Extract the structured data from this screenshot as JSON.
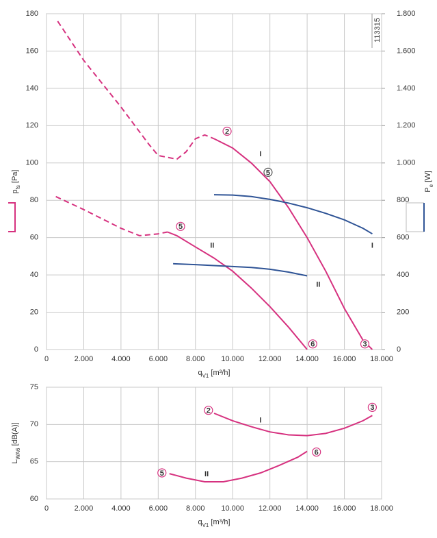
{
  "chart_data": [
    {
      "type": "line",
      "xlabel": {
        "main": "q",
        "sub": "V1",
        "unit": "[m³/h]"
      },
      "ylabel": {
        "main": "p",
        "sub": "fs",
        "unit": "[Pa]"
      },
      "y2label": {
        "main": "P",
        "sub": "e",
        "unit": "[W]"
      },
      "annotation": "113315",
      "xlim": [
        0,
        18000
      ],
      "xticks": [
        0,
        {
          "value": 2000,
          "label": "2.000"
        },
        {
          "value": 4000,
          "label": "4.000"
        },
        {
          "value": 6000,
          "label": "6.000"
        },
        {
          "value": 8000,
          "label": "8.000"
        },
        {
          "value": 10000,
          "label": "10.000"
        },
        {
          "value": 12000,
          "label": "12.000"
        },
        {
          "value": 14000,
          "label": "14.000"
        },
        {
          "value": 16000,
          "label": "16.000"
        },
        {
          "value": 18000,
          "label": "18.000"
        }
      ],
      "ylim": [
        0,
        180
      ],
      "yticks": [
        0,
        20,
        40,
        60,
        80,
        100,
        120,
        140,
        160,
        180
      ],
      "y2lim": [
        0,
        1800
      ],
      "y2ticks": [
        0,
        200,
        400,
        600,
        800,
        {
          "value": 1000,
          "label": "1.000"
        },
        {
          "value": 1200,
          "label": "1.200"
        },
        {
          "value": 1400,
          "label": "1.400"
        },
        {
          "value": 1600,
          "label": "1.600"
        },
        {
          "value": 1800,
          "label": "1.800"
        }
      ],
      "grid": true,
      "series": [
        {
          "color": "#d6317f",
          "dashed": true,
          "x": [
            600,
            2000,
            4000,
            5500,
            6000,
            7000,
            7500,
            8000,
            8500,
            9000
          ],
          "values": [
            176,
            155,
            130,
            110,
            104,
            102,
            106,
            113,
            115,
            113
          ]
        },
        {
          "color": "#d6317f",
          "x": [
            9000,
            10000,
            11000,
            12000,
            13000,
            14000,
            15000,
            16000,
            17000,
            17500
          ],
          "values": [
            113,
            108,
            100,
            90,
            76,
            60,
            42,
            22,
            5,
            0
          ]
        },
        {
          "color": "#d6317f",
          "dashed": true,
          "x": [
            500,
            2000,
            4000,
            5000,
            6000,
            6500
          ],
          "values": [
            82,
            75,
            65,
            61,
            62,
            63
          ]
        },
        {
          "color": "#d6317f",
          "x": [
            6500,
            7000,
            8000,
            9000,
            10000,
            11000,
            12000,
            13000,
            14000
          ],
          "values": [
            63,
            61,
            55,
            49,
            42,
            33,
            23,
            12,
            0
          ]
        },
        {
          "color": "#2f5496",
          "axis": "y2",
          "x": [
            9000,
            10000,
            11000,
            12000,
            13000,
            14000,
            15000,
            16000,
            17000,
            17500
          ],
          "values": [
            830,
            828,
            820,
            805,
            785,
            760,
            730,
            695,
            650,
            620
          ]
        },
        {
          "color": "#2f5496",
          "axis": "y2",
          "x": [
            6800,
            8000,
            9000,
            10000,
            11000,
            12000,
            13000,
            14000
          ],
          "values": [
            460,
            455,
            450,
            445,
            440,
            430,
            415,
            395
          ]
        }
      ],
      "markers": [
        {
          "text": "2",
          "x": 9700,
          "y": 117,
          "circle": true,
          "color": "#d6317f"
        },
        {
          "text": "5",
          "x": 7200,
          "y": 66,
          "circle": true,
          "color": "#d6317f"
        },
        {
          "text": "5",
          "x": 11900,
          "y": 95,
          "circle": true,
          "color": "#555"
        },
        {
          "text": "3",
          "x": 17100,
          "y": 3,
          "circle": true,
          "color": "#d6317f"
        },
        {
          "text": "6",
          "x": 14300,
          "y": 3,
          "circle": true,
          "color": "#d6317f"
        },
        {
          "text": "I",
          "x": 11500,
          "y": 105,
          "color": "#d6317f"
        },
        {
          "text": "II",
          "x": 8900,
          "y": 56,
          "color": "#d6317f"
        },
        {
          "text": "I",
          "x": 17500,
          "y": 56,
          "color": "#2f5496"
        },
        {
          "text": "II",
          "x": 14600,
          "y": 35,
          "color": "#2f5496"
        }
      ]
    },
    {
      "type": "line",
      "xlabel": {
        "main": "q",
        "sub": "V1",
        "unit": "[m³/h]"
      },
      "ylabel": {
        "main": "L",
        "sub": "WA6",
        "unit": "[dB(A)]"
      },
      "xlim": [
        0,
        18000
      ],
      "xticks": [
        0,
        {
          "value": 2000,
          "label": "2.000"
        },
        {
          "value": 4000,
          "label": "4.000"
        },
        {
          "value": 6000,
          "label": "6.000"
        },
        {
          "value": 8000,
          "label": "8.000"
        },
        {
          "value": 10000,
          "label": "10.000"
        },
        {
          "value": 12000,
          "label": "12.000"
        },
        {
          "value": 14000,
          "label": "14.000"
        },
        {
          "value": 16000,
          "label": "16.000"
        },
        {
          "value": 18000,
          "label": "18.000"
        }
      ],
      "ylim": [
        60,
        75
      ],
      "yticks": [
        60,
        65,
        70,
        75
      ],
      "grid": true,
      "series": [
        {
          "color": "#d6317f",
          "x": [
            9000,
            10000,
            11000,
            12000,
            13000,
            14000,
            15000,
            16000,
            17000,
            17500
          ],
          "values": [
            71.5,
            70.5,
            69.7,
            69,
            68.6,
            68.5,
            68.8,
            69.5,
            70.5,
            71.2
          ]
        },
        {
          "color": "#d6317f",
          "x": [
            6600,
            7500,
            8500,
            9500,
            10500,
            11500,
            12500,
            13500,
            14000
          ],
          "values": [
            63.4,
            62.8,
            62.3,
            62.3,
            62.8,
            63.5,
            64.5,
            65.6,
            66.4
          ]
        }
      ],
      "markers": [
        {
          "text": "2",
          "x": 8700,
          "y": 71.9,
          "circle": true,
          "color": "#d6317f"
        },
        {
          "text": "3",
          "x": 17500,
          "y": 72.3,
          "circle": true,
          "color": "#d6317f"
        },
        {
          "text": "5",
          "x": 6200,
          "y": 63.5,
          "circle": true,
          "color": "#d6317f"
        },
        {
          "text": "6",
          "x": 14500,
          "y": 66.3,
          "circle": true,
          "color": "#d6317f"
        },
        {
          "text": "II",
          "x": 8600,
          "y": 63.4,
          "color": "#d6317f"
        },
        {
          "text": "I",
          "x": 11500,
          "y": 70.6,
          "color": "#d6317f"
        }
      ]
    }
  ]
}
